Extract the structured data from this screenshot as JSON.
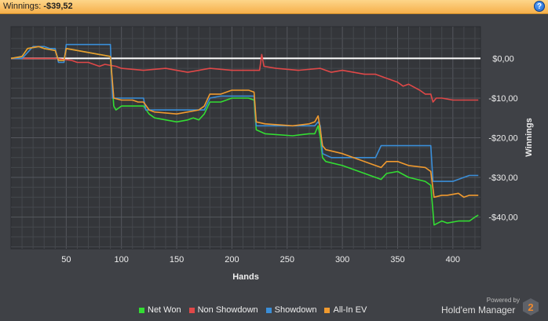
{
  "titlebar": {
    "label": "Winnings:",
    "value": "-$39,52",
    "help_icon": "?"
  },
  "chart_data": {
    "type": "line",
    "xlabel": "Hands",
    "ylabel": "Winnings",
    "xlim": [
      0,
      425
    ],
    "ylim": [
      -48,
      8
    ],
    "x_ticks": [
      50,
      100,
      150,
      200,
      250,
      300,
      350,
      400
    ],
    "y_ticks": [
      0,
      -10,
      -20,
      -30,
      -40
    ],
    "y_tick_labels": [
      "$0,00",
      "-$10,00",
      "-$20,00",
      "-$30,00",
      "-$40,00"
    ],
    "zero_line": true,
    "grid": true,
    "legend_position": "bottom",
    "series": [
      {
        "name": "Net Won",
        "color": "#33dd33",
        "points": [
          [
            0,
            0
          ],
          [
            10,
            0.5
          ],
          [
            15,
            2.5
          ],
          [
            25,
            3
          ],
          [
            30,
            2.5
          ],
          [
            40,
            2
          ],
          [
            43,
            -0.5
          ],
          [
            48,
            -0.5
          ],
          [
            50,
            2.5
          ],
          [
            60,
            2
          ],
          [
            90,
            0.5
          ],
          [
            93,
            -12
          ],
          [
            95,
            -13
          ],
          [
            100,
            -12
          ],
          [
            110,
            -12
          ],
          [
            115,
            -12
          ],
          [
            120,
            -12
          ],
          [
            125,
            -14
          ],
          [
            130,
            -15
          ],
          [
            150,
            -16
          ],
          [
            160,
            -15.5
          ],
          [
            165,
            -15
          ],
          [
            170,
            -15.5
          ],
          [
            175,
            -14
          ],
          [
            180,
            -11
          ],
          [
            190,
            -11
          ],
          [
            200,
            -10
          ],
          [
            215,
            -10
          ],
          [
            220,
            -10.5
          ],
          [
            222,
            -18
          ],
          [
            230,
            -19
          ],
          [
            255,
            -19.5
          ],
          [
            270,
            -19
          ],
          [
            275,
            -19
          ],
          [
            278,
            -17
          ],
          [
            280,
            -20
          ],
          [
            282,
            -25
          ],
          [
            285,
            -26
          ],
          [
            300,
            -27
          ],
          [
            330,
            -30
          ],
          [
            335,
            -30.5
          ],
          [
            340,
            -29
          ],
          [
            350,
            -28.5
          ],
          [
            360,
            -30
          ],
          [
            375,
            -31
          ],
          [
            380,
            -32
          ],
          [
            383,
            -42
          ],
          [
            390,
            -41
          ],
          [
            395,
            -41.5
          ],
          [
            405,
            -41
          ],
          [
            415,
            -41
          ],
          [
            420,
            -40
          ],
          [
            423,
            -39.5
          ]
        ]
      },
      {
        "name": "Non Showdown",
        "color": "#e04848",
        "points": [
          [
            0,
            0
          ],
          [
            10,
            0
          ],
          [
            15,
            0
          ],
          [
            30,
            0
          ],
          [
            40,
            0
          ],
          [
            55,
            -0.5
          ],
          [
            60,
            -1
          ],
          [
            70,
            -1
          ],
          [
            80,
            -2
          ],
          [
            85,
            -1.5
          ],
          [
            95,
            -2
          ],
          [
            100,
            -2.5
          ],
          [
            120,
            -3
          ],
          [
            140,
            -2.5
          ],
          [
            160,
            -3.5
          ],
          [
            180,
            -2.5
          ],
          [
            200,
            -3
          ],
          [
            220,
            -3
          ],
          [
            225,
            -3
          ],
          [
            227,
            1
          ],
          [
            229,
            -2
          ],
          [
            240,
            -2.5
          ],
          [
            260,
            -3
          ],
          [
            280,
            -2.5
          ],
          [
            290,
            -3.5
          ],
          [
            300,
            -3
          ],
          [
            310,
            -3.5
          ],
          [
            320,
            -4
          ],
          [
            330,
            -4
          ],
          [
            340,
            -5
          ],
          [
            350,
            -6
          ],
          [
            355,
            -7
          ],
          [
            360,
            -6.5
          ],
          [
            370,
            -8
          ],
          [
            375,
            -9
          ],
          [
            380,
            -9
          ],
          [
            382,
            -11
          ],
          [
            385,
            -10
          ],
          [
            390,
            -10
          ],
          [
            400,
            -10.5
          ],
          [
            423,
            -10.5
          ]
        ]
      },
      {
        "name": "Showdown",
        "color": "#3a8ed8",
        "points": [
          [
            0,
            0
          ],
          [
            10,
            0
          ],
          [
            20,
            3
          ],
          [
            30,
            3
          ],
          [
            35,
            2.5
          ],
          [
            40,
            2.5
          ],
          [
            43,
            -1
          ],
          [
            48,
            -1
          ],
          [
            50,
            3.5
          ],
          [
            60,
            3.5
          ],
          [
            70,
            3.5
          ],
          [
            80,
            3.5
          ],
          [
            90,
            3.5
          ],
          [
            92,
            -10
          ],
          [
            100,
            -10
          ],
          [
            115,
            -10
          ],
          [
            120,
            -10
          ],
          [
            122,
            -13
          ],
          [
            130,
            -13
          ],
          [
            160,
            -13
          ],
          [
            170,
            -13
          ],
          [
            175,
            -13
          ],
          [
            180,
            -10
          ],
          [
            190,
            -9.5
          ],
          [
            215,
            -9.5
          ],
          [
            220,
            -9.5
          ],
          [
            222,
            -17
          ],
          [
            240,
            -17
          ],
          [
            255,
            -17
          ],
          [
            260,
            -17
          ],
          [
            270,
            -17
          ],
          [
            275,
            -17
          ],
          [
            278,
            -16
          ],
          [
            280,
            -17
          ],
          [
            282,
            -24
          ],
          [
            290,
            -25
          ],
          [
            310,
            -25
          ],
          [
            330,
            -25
          ],
          [
            335,
            -22
          ],
          [
            350,
            -22
          ],
          [
            370,
            -22
          ],
          [
            380,
            -22
          ],
          [
            382,
            -31
          ],
          [
            390,
            -31
          ],
          [
            400,
            -31
          ],
          [
            410,
            -30
          ],
          [
            415,
            -29.5
          ],
          [
            423,
            -29.5
          ]
        ]
      },
      {
        "name": "All-In EV",
        "color": "#f09a2f",
        "points": [
          [
            0,
            0
          ],
          [
            10,
            0.5
          ],
          [
            15,
            2.5
          ],
          [
            25,
            3
          ],
          [
            30,
            2.5
          ],
          [
            40,
            2
          ],
          [
            43,
            -0.5
          ],
          [
            48,
            -0.5
          ],
          [
            50,
            2.5
          ],
          [
            60,
            2
          ],
          [
            90,
            0.5
          ],
          [
            93,
            -10
          ],
          [
            100,
            -10.5
          ],
          [
            110,
            -10.5
          ],
          [
            115,
            -11
          ],
          [
            120,
            -11
          ],
          [
            125,
            -13
          ],
          [
            130,
            -13.5
          ],
          [
            150,
            -14
          ],
          [
            160,
            -13.5
          ],
          [
            170,
            -13
          ],
          [
            175,
            -12
          ],
          [
            180,
            -9
          ],
          [
            190,
            -9
          ],
          [
            200,
            -8
          ],
          [
            215,
            -8
          ],
          [
            220,
            -8.5
          ],
          [
            222,
            -16
          ],
          [
            230,
            -16.5
          ],
          [
            255,
            -17
          ],
          [
            270,
            -16.5
          ],
          [
            275,
            -16
          ],
          [
            278,
            -14.5
          ],
          [
            280,
            -18
          ],
          [
            282,
            -22
          ],
          [
            285,
            -23
          ],
          [
            300,
            -24
          ],
          [
            330,
            -27
          ],
          [
            335,
            -27.5
          ],
          [
            340,
            -26
          ],
          [
            350,
            -26
          ],
          [
            360,
            -27
          ],
          [
            375,
            -27.5
          ],
          [
            380,
            -28.5
          ],
          [
            383,
            -35
          ],
          [
            390,
            -34.5
          ],
          [
            395,
            -34.5
          ],
          [
            405,
            -34
          ],
          [
            410,
            -35
          ],
          [
            415,
            -34.5
          ],
          [
            423,
            -34.5
          ]
        ]
      }
    ]
  },
  "legend": [
    {
      "label": "Net Won",
      "color": "#33dd33"
    },
    {
      "label": "Non Showdown",
      "color": "#e04848"
    },
    {
      "label": "Showdown",
      "color": "#3a8ed8"
    },
    {
      "label": "All-In EV",
      "color": "#f09a2f"
    }
  ],
  "branding": {
    "powered_by": "Powered by",
    "name": "Hold'em Manager",
    "logo_digit": "2"
  }
}
